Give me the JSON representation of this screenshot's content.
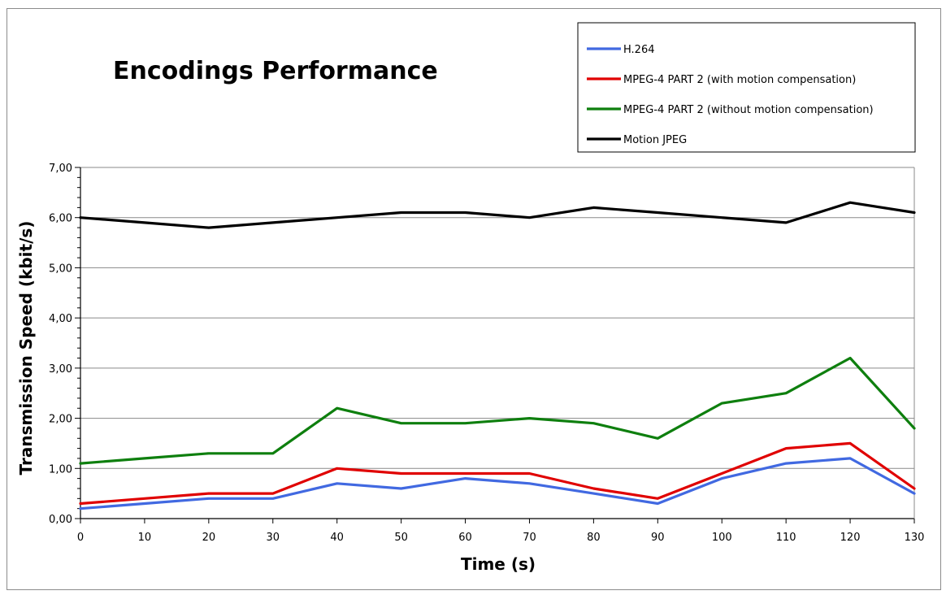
{
  "chart_data": {
    "type": "line",
    "title": "Encodings Performance",
    "xlabel": "Time (s)",
    "ylabel": "Transmission Speed (kbit/s)",
    "x": [
      0,
      10,
      20,
      30,
      40,
      50,
      60,
      70,
      80,
      90,
      100,
      110,
      120,
      130
    ],
    "x_ticks": [
      "0",
      "10",
      "20",
      "30",
      "40",
      "50",
      "60",
      "70",
      "80",
      "90",
      "100",
      "110",
      "120",
      "130"
    ],
    "xlim": [
      0,
      130
    ],
    "ylim": [
      0,
      7
    ],
    "y_ticks": [
      "0,00",
      "1,00",
      "2,00",
      "3,00",
      "4,00",
      "5,00",
      "6,00",
      "7,00"
    ],
    "grid": "horizontal",
    "legend_position": "top-right",
    "series": [
      {
        "name": "H.264",
        "color": "#4169e1",
        "values": [
          0.2,
          0.3,
          0.4,
          0.4,
          0.7,
          0.6,
          0.8,
          0.7,
          0.5,
          0.3,
          0.8,
          1.1,
          1.2,
          0.5
        ]
      },
      {
        "name": "MPEG-4 PART 2 (with motion compensation)",
        "color": "#e00000",
        "values": [
          0.3,
          0.4,
          0.5,
          0.5,
          1.0,
          0.9,
          0.9,
          0.9,
          0.6,
          0.4,
          0.9,
          1.4,
          1.5,
          0.6
        ]
      },
      {
        "name": "MPEG-4 PART 2 (without motion compensation)",
        "color": "#0e7f0e",
        "values": [
          1.1,
          1.2,
          1.3,
          1.3,
          2.2,
          1.9,
          1.9,
          2.0,
          1.9,
          1.6,
          2.3,
          2.5,
          3.2,
          1.8
        ]
      },
      {
        "name": "Motion JPEG",
        "color": "#000000",
        "values": [
          6.0,
          5.9,
          5.8,
          5.9,
          6.0,
          6.1,
          6.1,
          6.0,
          6.2,
          6.1,
          6.0,
          5.9,
          6.3,
          6.1
        ]
      }
    ]
  }
}
